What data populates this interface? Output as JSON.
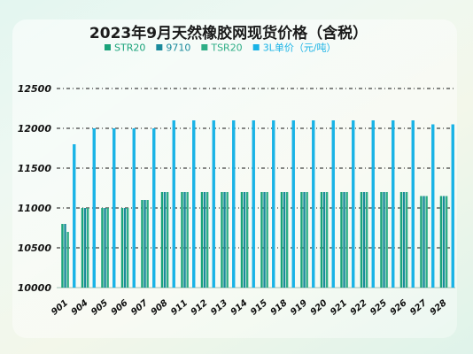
{
  "chart_data": {
    "type": "bar",
    "title": "2023年9月天然橡胶网现货价格（含税）",
    "categories": [
      "901",
      "904",
      "905",
      "906",
      "907",
      "908",
      "911",
      "912",
      "913",
      "914",
      "915",
      "918",
      "919",
      "920",
      "921",
      "922",
      "925",
      "926",
      "927",
      "928"
    ],
    "series": [
      {
        "name": "STR20",
        "color": "#1aa37a",
        "values": [
          10800,
          11000,
          11000,
          11000,
          11100,
          11200,
          11200,
          11200,
          11200,
          11200,
          11200,
          11200,
          11200,
          11200,
          11200,
          11200,
          11200,
          11200,
          11150,
          11150
        ]
      },
      {
        "name": "9710",
        "color": "#1a8a9c",
        "values": [
          10800,
          11000,
          11000,
          11000,
          11100,
          11200,
          11200,
          11200,
          11200,
          11200,
          11200,
          11200,
          11200,
          11200,
          11200,
          11200,
          11200,
          11200,
          11150,
          11150
        ]
      },
      {
        "name": "TSR20",
        "color": "#2fae86",
        "values": [
          10700,
          11000,
          11000,
          11000,
          11100,
          11200,
          11200,
          11200,
          11200,
          11200,
          11200,
          11200,
          11200,
          11200,
          11200,
          11200,
          11200,
          11200,
          11150,
          11150
        ]
      },
      {
        "name": "3L单价（元/吨）",
        "color": "#19b3e6",
        "values": [
          11800,
          12000,
          12000,
          12000,
          12000,
          12100,
          12100,
          12100,
          12100,
          12100,
          12100,
          12100,
          12100,
          12100,
          12100,
          12100,
          12100,
          12100,
          12050,
          12050
        ]
      }
    ],
    "yticks": [
      10000,
      10500,
      11000,
      11500,
      12000,
      12500
    ],
    "ylim": [
      10000,
      12500
    ],
    "xlabel": "",
    "ylabel": "",
    "grid": true,
    "legend": "top"
  }
}
